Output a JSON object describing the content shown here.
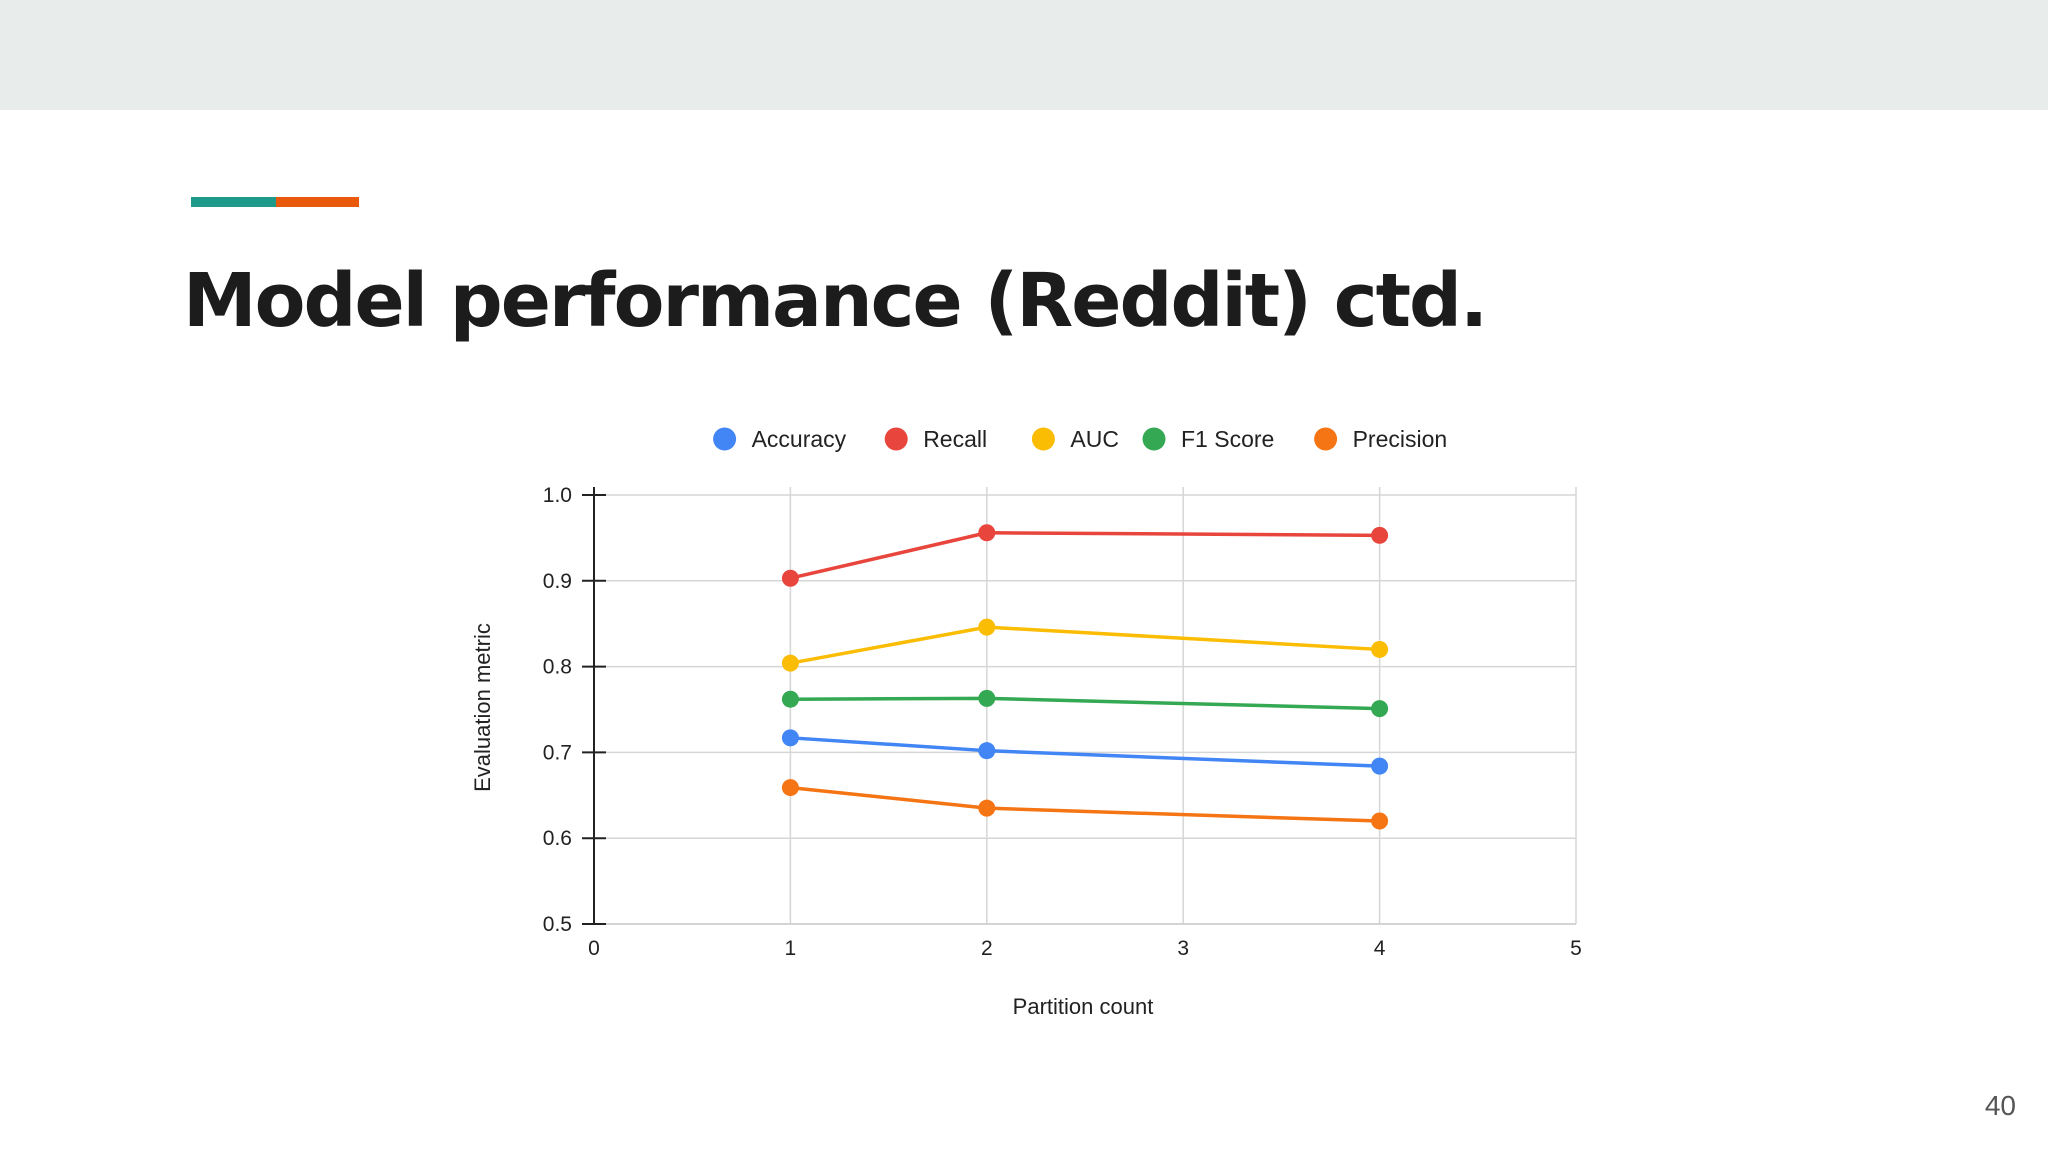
{
  "slide": {
    "title": "Model performance (Reddit) ctd.",
    "page_number": "40",
    "colors": {
      "band": "#e8edec",
      "accent_teal": "#1d9a8a",
      "accent_orange": "#e8590c"
    }
  },
  "chart_data": {
    "type": "line",
    "title": "",
    "xlabel": "Partition count",
    "ylabel": "Evaluation metric",
    "xlim": [
      0,
      5
    ],
    "ylim": [
      0.5,
      1.0
    ],
    "x_ticks": [
      "0",
      "1",
      "2",
      "3",
      "4",
      "5"
    ],
    "y_ticks": [
      "0.5",
      "0.6",
      "0.7",
      "0.8",
      "0.9",
      "1.0"
    ],
    "grid": true,
    "legend": "top",
    "x": [
      1,
      2,
      4
    ],
    "series": [
      {
        "name": "Accuracy",
        "color": "#4285f4",
        "values": [
          0.717,
          0.702,
          0.684
        ]
      },
      {
        "name": "Recall",
        "color": "#e8453c",
        "values": [
          0.903,
          0.956,
          0.953
        ]
      },
      {
        "name": "AUC",
        "color": "#fbbc04",
        "values": [
          0.804,
          0.846,
          0.82
        ]
      },
      {
        "name": "F1 Score",
        "color": "#34a853",
        "values": [
          0.762,
          0.763,
          0.751
        ]
      },
      {
        "name": "Precision",
        "color": "#f57413",
        "values": [
          0.659,
          0.635,
          0.62
        ]
      }
    ]
  }
}
